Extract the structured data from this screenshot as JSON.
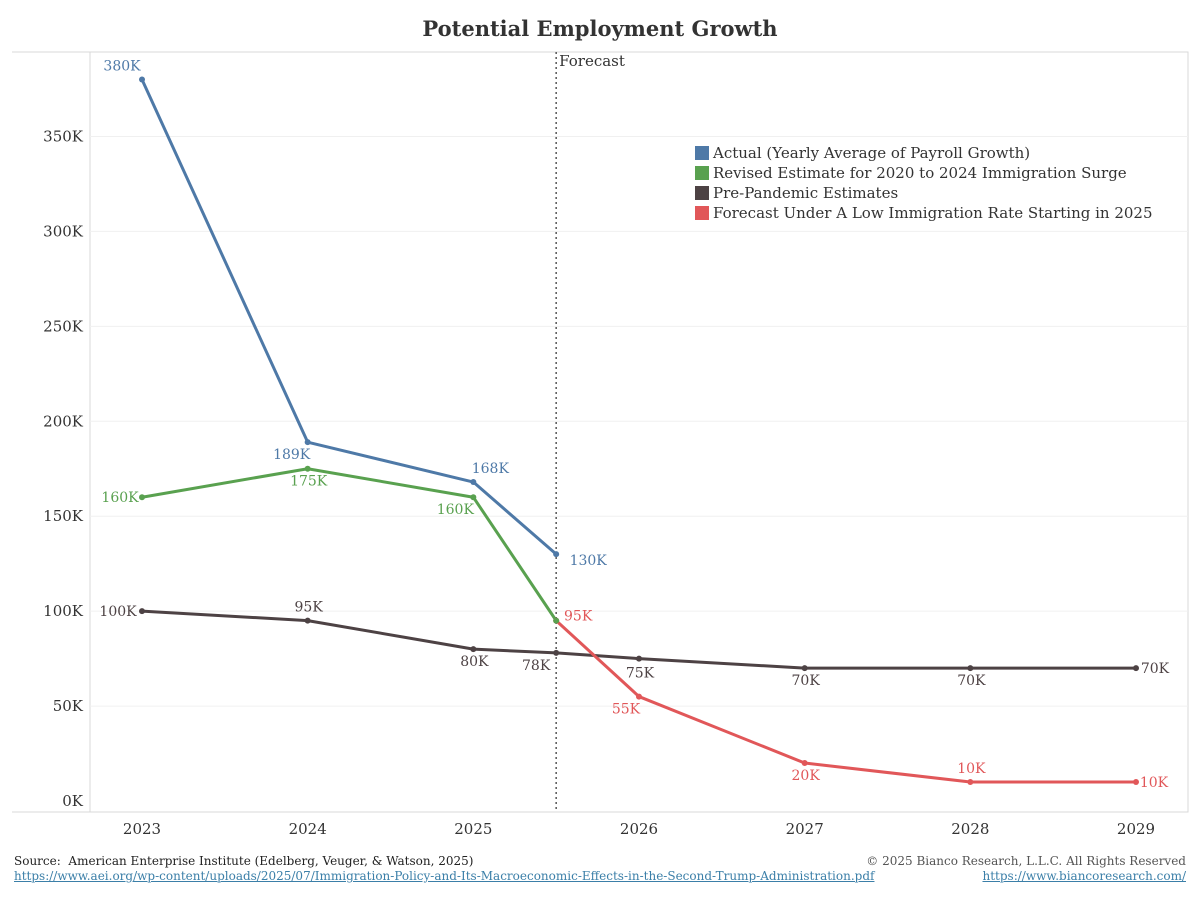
{
  "chart_data": {
    "type": "line",
    "title": "Potential Employment Growth",
    "x": [
      "2023",
      "2024",
      "2025",
      "2025.5",
      "2026",
      "2027",
      "2028",
      "2029"
    ],
    "x_ticks": [
      "2023",
      "2024",
      "2025",
      "2026",
      "2027",
      "2028",
      "2029"
    ],
    "y_ticks": [
      "0K",
      "50K",
      "100K",
      "150K",
      "200K",
      "250K",
      "300K",
      "350K"
    ],
    "ylim": [
      0,
      390000
    ],
    "grid": "horizontal",
    "legend_position": "top-right",
    "forecast_marker": {
      "x": 2025.5,
      "label": "Forecast"
    },
    "series": [
      {
        "name": "Actual (Yearly Average of Payroll Growth)",
        "color": "#4e79a7",
        "points": [
          {
            "x": 2023,
            "y": 380000,
            "label": "380K"
          },
          {
            "x": 2024,
            "y": 189000,
            "label": "189K"
          },
          {
            "x": 2025,
            "y": 168000,
            "label": "168K"
          },
          {
            "x": 2025.5,
            "y": 130000,
            "label": "130K"
          }
        ]
      },
      {
        "name": "Revised Estimate for 2020 to 2024 Immigration Surge",
        "color": "#59a14f",
        "points": [
          {
            "x": 2023,
            "y": 160000,
            "label": "160K"
          },
          {
            "x": 2024,
            "y": 175000,
            "label": "175K"
          },
          {
            "x": 2025,
            "y": 160000,
            "label": "160K"
          },
          {
            "x": 2025.5,
            "y": 95000,
            "label": ""
          }
        ]
      },
      {
        "name": "Pre-Pandemic Estimates",
        "color": "#4d4244",
        "points": [
          {
            "x": 2023,
            "y": 100000,
            "label": "100K"
          },
          {
            "x": 2024,
            "y": 95000,
            "label": "95K"
          },
          {
            "x": 2025,
            "y": 80000,
            "label": "80K"
          },
          {
            "x": 2025.5,
            "y": 78000,
            "label": "78K"
          },
          {
            "x": 2026,
            "y": 75000,
            "label": "75K"
          },
          {
            "x": 2027,
            "y": 70000,
            "label": "70K"
          },
          {
            "x": 2028,
            "y": 70000,
            "label": "70K"
          },
          {
            "x": 2029,
            "y": 70000,
            "label": "70K"
          }
        ]
      },
      {
        "name": "Forecast Under A Low Immigration Rate Starting in 2025",
        "color": "#e15759",
        "points": [
          {
            "x": 2025.5,
            "y": 95000,
            "label": "95K"
          },
          {
            "x": 2026,
            "y": 55000,
            "label": "55K"
          },
          {
            "x": 2027,
            "y": 20000,
            "label": "20K"
          },
          {
            "x": 2028,
            "y": 10000,
            "label": "10K"
          },
          {
            "x": 2029,
            "y": 10000,
            "label": "10K"
          }
        ]
      }
    ]
  },
  "footer": {
    "source_prefix": "Source:",
    "source_text": "American Enterprise Institute (Edelberg, Veuger, & Watson, 2025)",
    "source_url": "https://www.aei.org/wp-content/uploads/2025/07/Immigration-Policy-and-Its-Macroeconomic-Effects-in-the-Second-Trump-Administration.pdf",
    "copyright": "© 2025 Bianco Research, L.L.C. All Rights Reserved",
    "site_url": "https://www.biancoresearch.com/"
  }
}
